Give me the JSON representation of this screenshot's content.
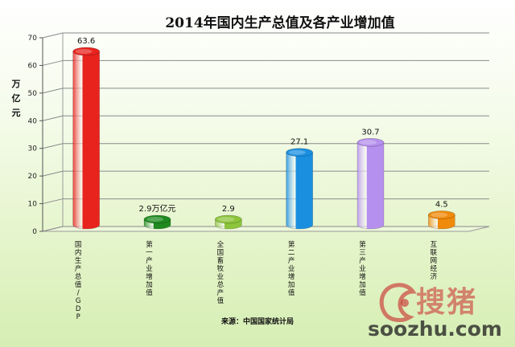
{
  "chart_data": {
    "type": "bar",
    "title": "2014年国内生产总值及各产业增加值",
    "ylabel": "万亿元",
    "ylim": [
      0,
      70
    ],
    "yticks": [
      0,
      10,
      20,
      30,
      40,
      50,
      60,
      70
    ],
    "grid": true,
    "categories": [
      "国内生产总值/GDP",
      "第一产业增加值",
      "全国畜牧业总产值",
      "第二产业增加值",
      "第三产业增加值",
      "互联网经济"
    ],
    "values": [
      63.6,
      2.9,
      2.9,
      27.1,
      30.7,
      4.5
    ],
    "data_labels": [
      "63.6",
      "2.9万亿元",
      "2.9",
      "27.1",
      "30.7",
      "4.5"
    ],
    "colors": [
      "#e8231e",
      "#1f8a1f",
      "#8cc43a",
      "#1a8fe0",
      "#b690ee",
      "#f08a0a"
    ],
    "source": "来源：中国国家统计局"
  },
  "watermark": {
    "text": "搜猪",
    "url": "soozhu.com"
  }
}
